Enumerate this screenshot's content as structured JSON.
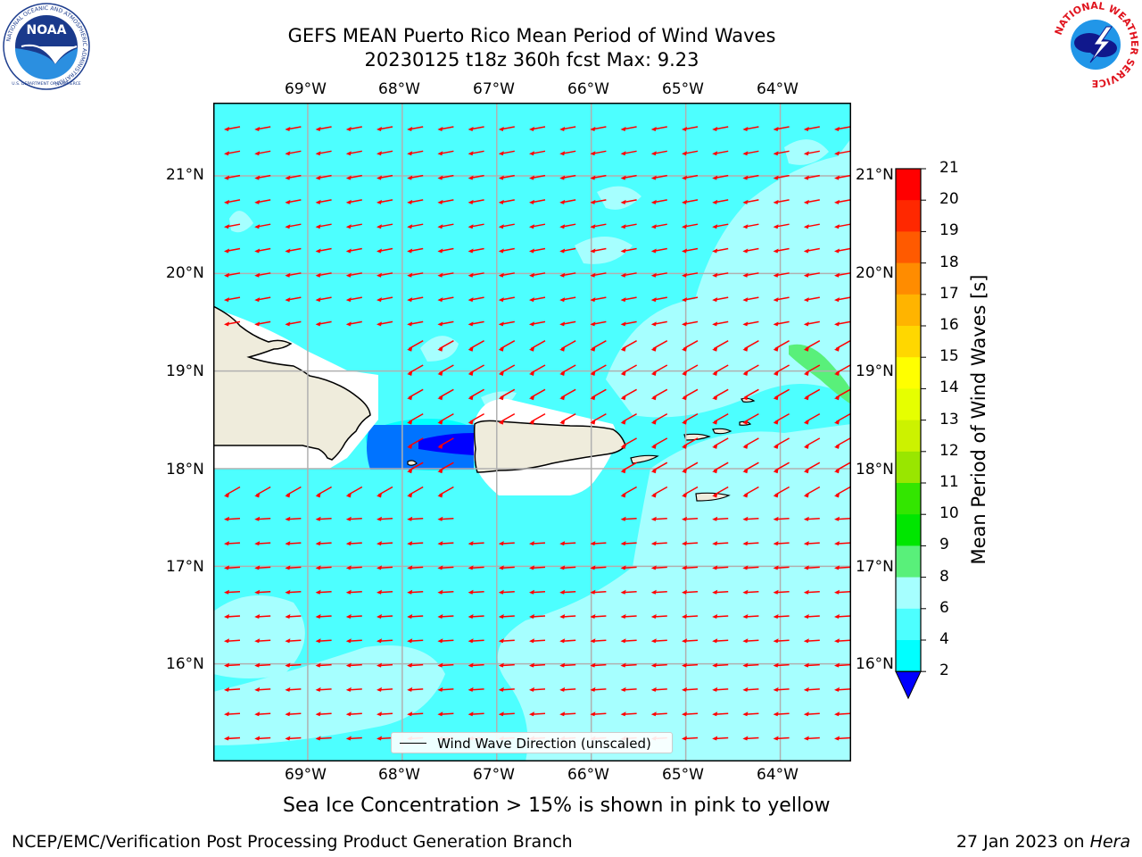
{
  "title": {
    "line1": "GEFS MEAN Puerto Rico Mean Period of Wind Waves",
    "line2": "20230125 t18z 360h fcst   Max: 9.23"
  },
  "logos": {
    "noaa_text": "NOAA",
    "noaa_ring": "NATIONAL OCEANIC AND ATMOSPHERIC ADMINISTRATION",
    "noaa_bottom": "U.S. DEPARTMENT OF COMMERCE",
    "nws_ring": "NATIONAL WEATHER SERVICE"
  },
  "axes": {
    "lon_ticks": [
      "69°W",
      "68°W",
      "67°W",
      "66°W",
      "65°W",
      "64°W"
    ],
    "lat_ticks": [
      "21°N",
      "20°N",
      "19°N",
      "18°N",
      "17°N",
      "16°N"
    ],
    "lon_values": [
      -69,
      -68,
      -67,
      -66,
      -65,
      -64
    ],
    "lat_values": [
      21,
      20,
      19,
      18,
      17,
      16
    ],
    "lon_range": [
      -70,
      -63.25
    ],
    "lat_range": [
      15.0,
      21.75
    ],
    "grid": true
  },
  "legend": {
    "label": "Wind Wave Direction (unscaled)",
    "placement": "bottom-center"
  },
  "colorbar": {
    "title": "Mean Period of Wind Waves [s]",
    "labels": [
      "21",
      "20",
      "19",
      "18",
      "17",
      "16",
      "15",
      "14",
      "13",
      "12",
      "11",
      "10",
      "9",
      "8",
      "6",
      "4",
      "2"
    ],
    "colors": [
      "#0000ff",
      "#0073ff",
      "#00ffff",
      "#4dffff",
      "#a6ffff",
      "#59f07a",
      "#00e600",
      "#33e600",
      "#99e600",
      "#ccf200",
      "#e6ff00",
      "#ffff00",
      "#ffd700",
      "#ffb400",
      "#ff8c00",
      "#ff5a00",
      "#ff2800",
      "#ff0000"
    ],
    "extend": "min"
  },
  "map_colors": {
    "land": "#efecdc",
    "ocean_default": "#4dffff",
    "arrow": "#ff0000",
    "coast": "#000000",
    "grid": "#b0b0b0"
  },
  "wave_direction": "toward west-southwest",
  "subtitle": "Sea Ice Concentration > 15% is shown in pink to yellow",
  "footer": {
    "left": "NCEP/EMC/Verification Post Processing Product Generation Branch",
    "right_date": "27 Jan 2023 on ",
    "right_host": "Hera"
  }
}
